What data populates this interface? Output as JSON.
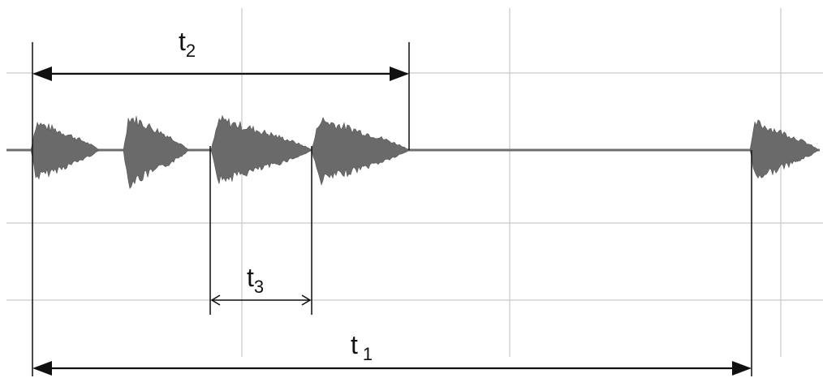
{
  "intervals": {
    "t1": {
      "letter": "t",
      "sub": "1"
    },
    "t2": {
      "letter": "t",
      "sub": "2"
    },
    "t3": {
      "letter": "t",
      "sub": "3"
    }
  },
  "colors": {
    "grid": "#c9c9c9",
    "signal": "#6a6a6a",
    "annotation": "#111111"
  }
}
